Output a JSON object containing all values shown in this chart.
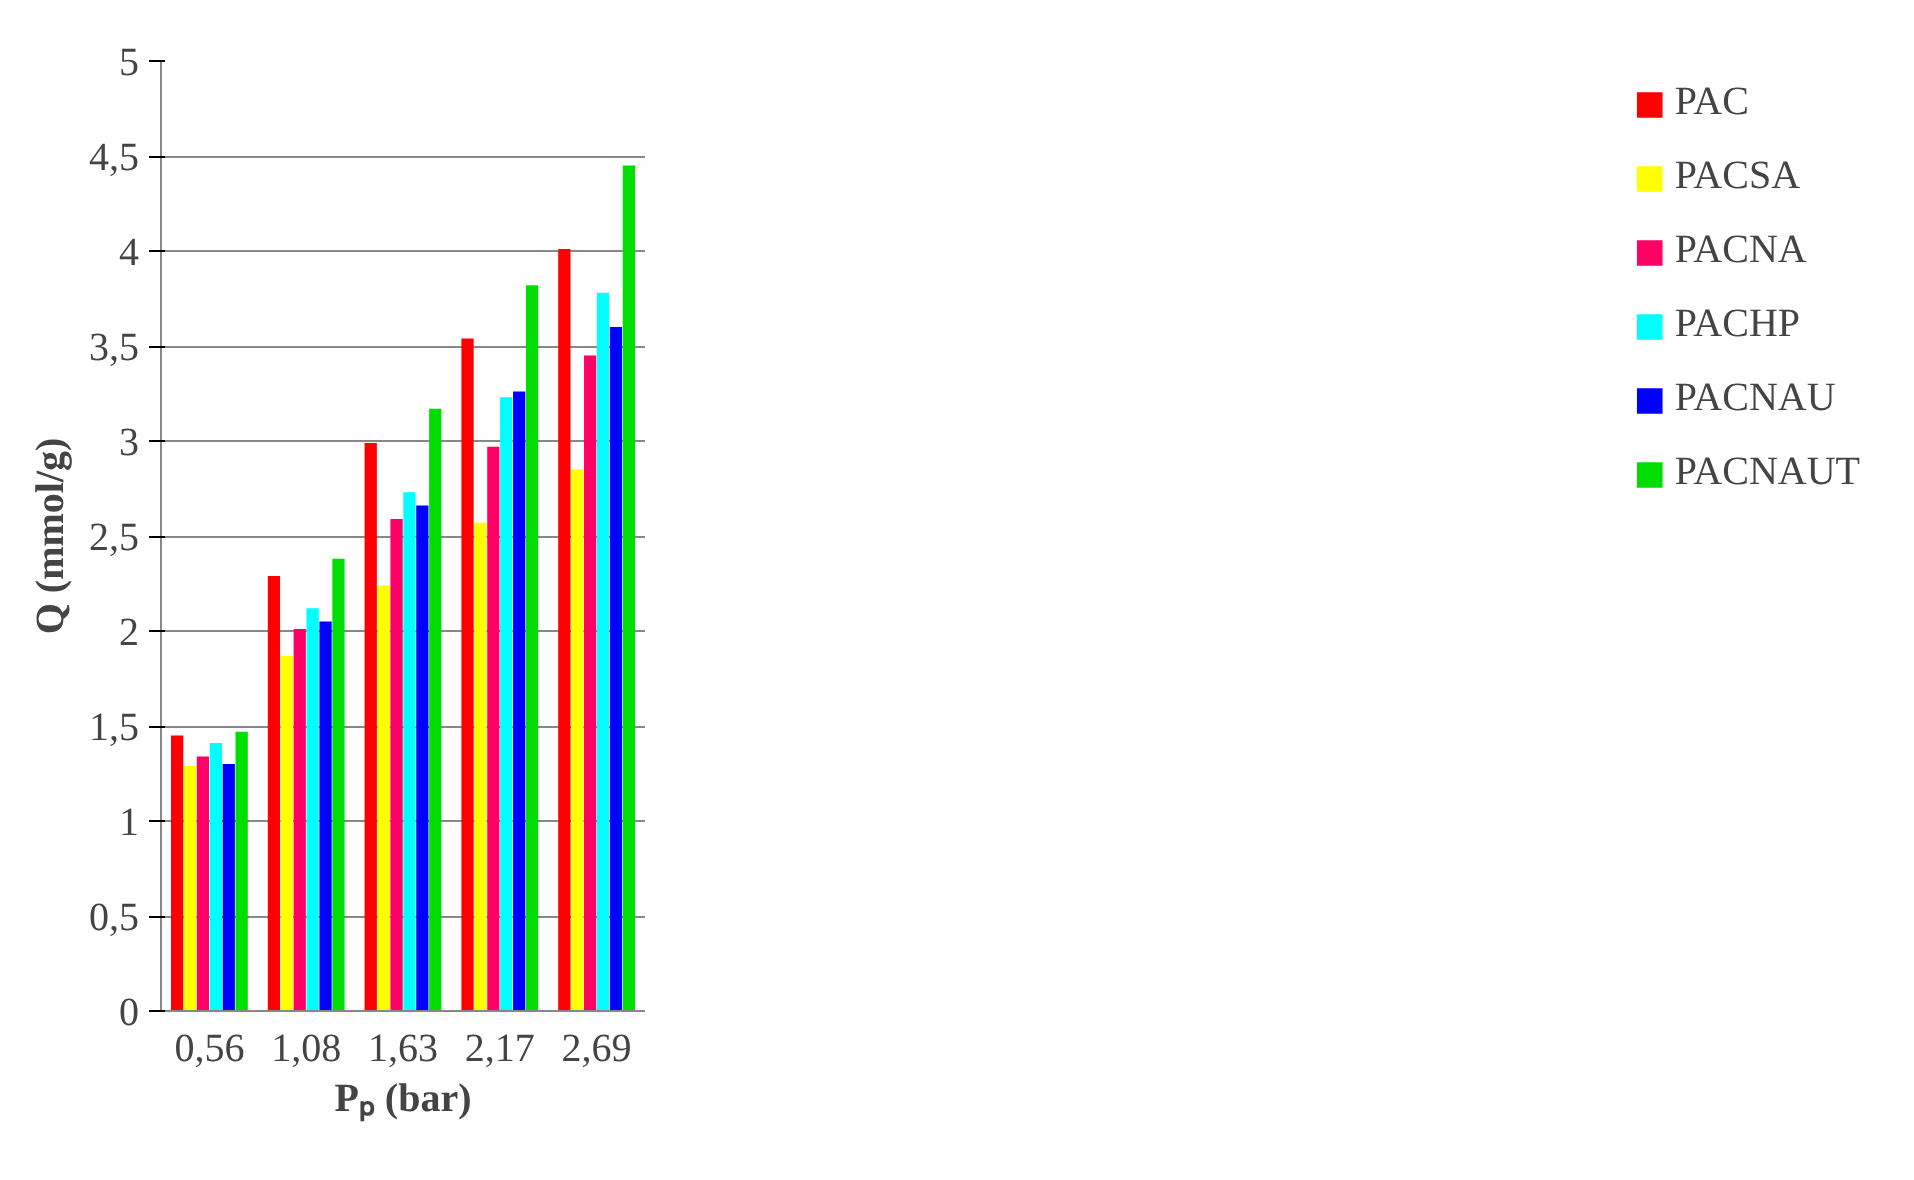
{
  "chart_data": {
    "type": "bar",
    "xlabel": "Pₚ (bar)",
    "ylabel": "Q (mmol/g)",
    "categories": [
      "0,56",
      "1,08",
      "1,63",
      "2,17",
      "2,69"
    ],
    "series": [
      {
        "name": "PAC",
        "color": "#ff0000",
        "values": [
          1.45,
          2.29,
          2.99,
          3.54,
          4.01
        ]
      },
      {
        "name": "PACSA",
        "color": "#ffff00",
        "values": [
          1.29,
          1.87,
          2.24,
          2.57,
          2.85
        ]
      },
      {
        "name": "PACNA",
        "color": "#ff0066",
        "values": [
          1.34,
          2.01,
          2.59,
          2.97,
          3.45
        ]
      },
      {
        "name": "PACHP",
        "color": "#00ffff",
        "values": [
          1.41,
          2.12,
          2.73,
          3.23,
          3.78
        ]
      },
      {
        "name": "PACNAU",
        "color": "#0000ff",
        "values": [
          1.3,
          2.05,
          2.66,
          3.26,
          3.6
        ]
      },
      {
        "name": "PACNAUT",
        "color": "#00dd00",
        "values": [
          1.47,
          2.38,
          3.17,
          3.82,
          4.45
        ]
      }
    ],
    "ylim": [
      0,
      5
    ],
    "yticks": [
      0,
      {
        "value": 0.5,
        "label": "0,5"
      },
      1,
      {
        "value": 1.5,
        "label": "1,5"
      },
      2,
      {
        "value": 2.5,
        "label": "2,5"
      },
      3,
      {
        "value": 3.5,
        "label": "3,5"
      },
      4,
      {
        "value": 4.5,
        "label": "4,5"
      },
      5
    ],
    "grid": "y",
    "legend": "right"
  }
}
